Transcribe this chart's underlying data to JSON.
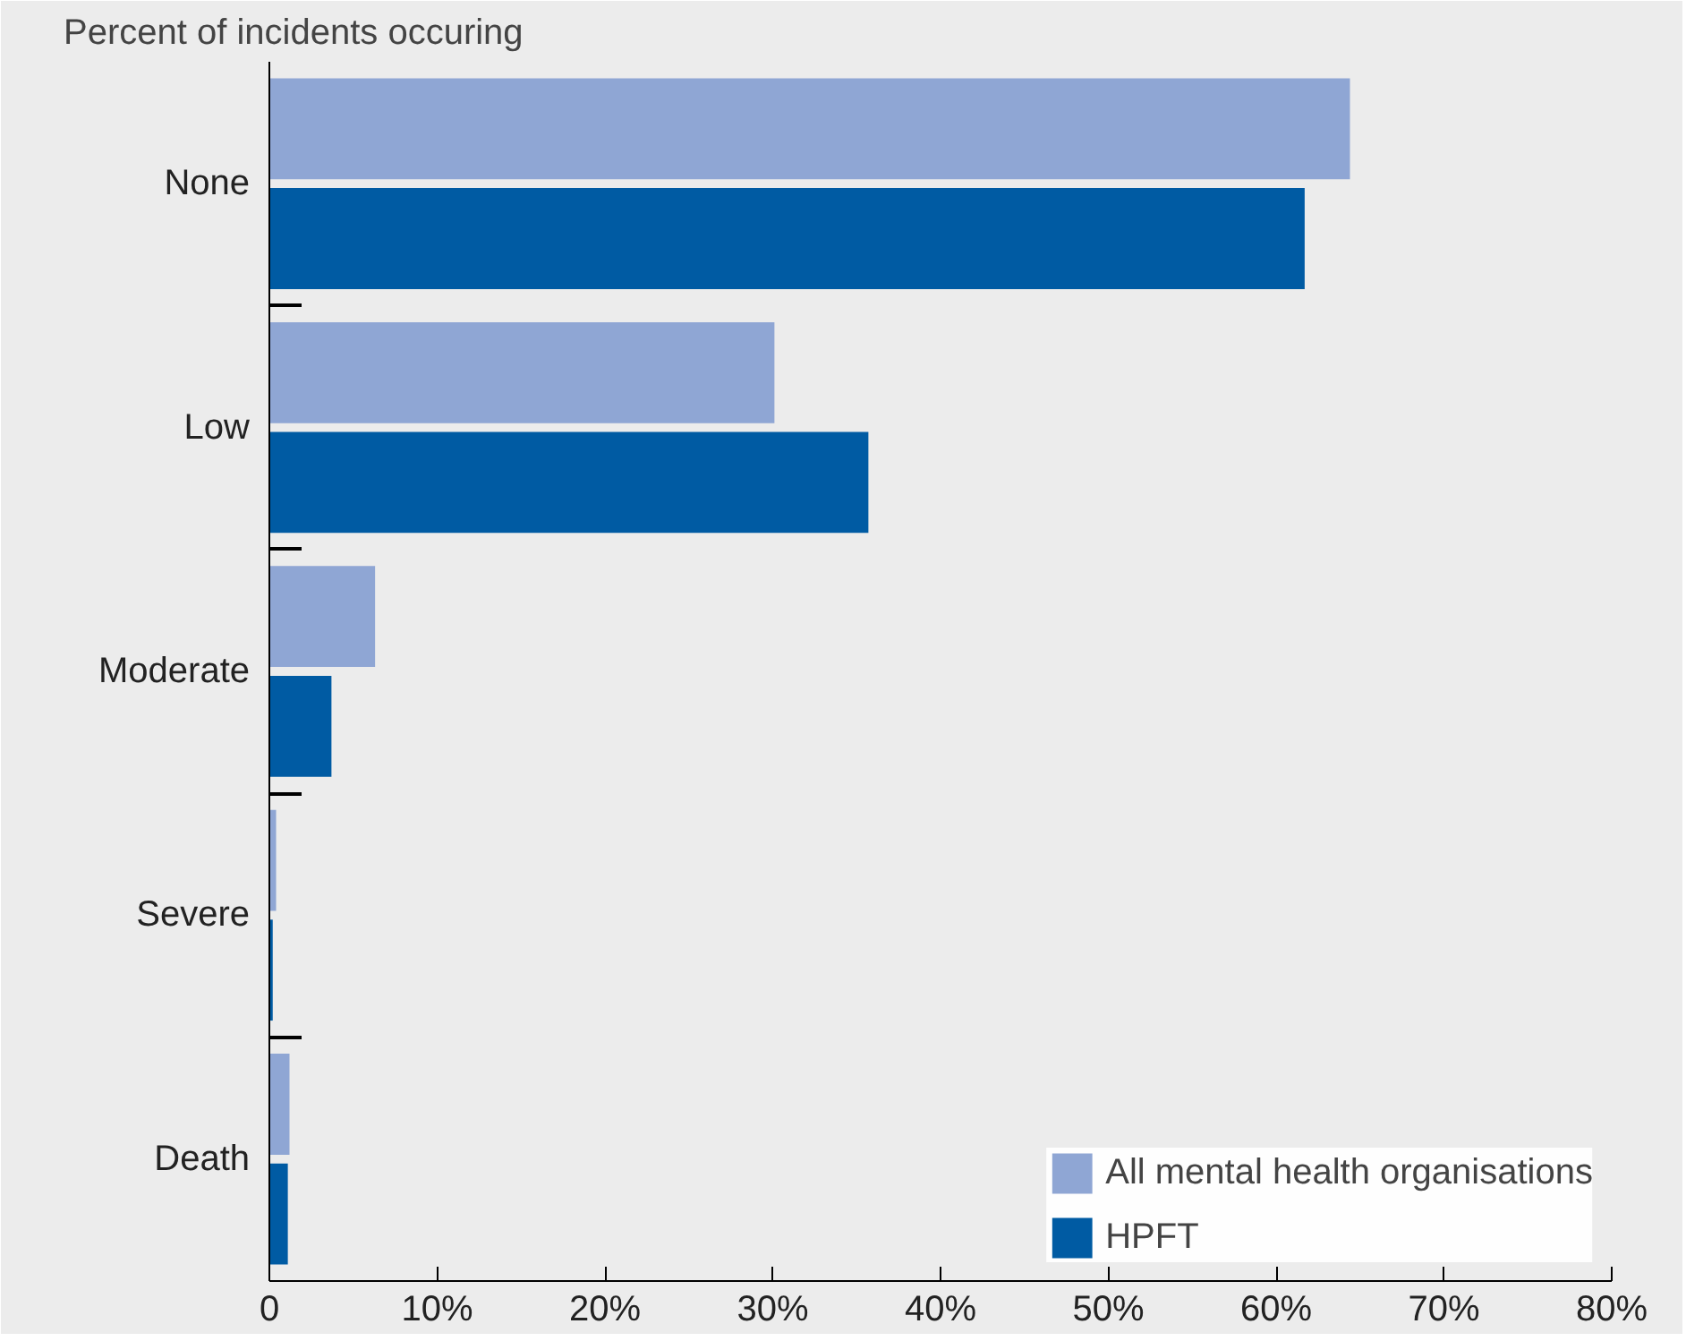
{
  "chart_data": {
    "type": "bar",
    "orientation": "horizontal",
    "title": "Percent of incidents occuring",
    "categories": [
      "None",
      "Low",
      "Moderate",
      "Severe",
      "Death"
    ],
    "series": [
      {
        "name": "All mental health organisations",
        "color": "#8fa6d4",
        "values": [
          64.4,
          30.1,
          6.3,
          0.4,
          1.2
        ]
      },
      {
        "name": "HPFT",
        "color": "#005ba3",
        "values": [
          61.7,
          35.7,
          3.7,
          0.2,
          1.1
        ]
      }
    ],
    "xlim": [
      0,
      80
    ],
    "xticks": [
      {
        "value": 0,
        "label": "0"
      },
      {
        "value": 10,
        "label": "10%"
      },
      {
        "value": 20,
        "label": "20%"
      },
      {
        "value": 30,
        "label": "30%"
      },
      {
        "value": 40,
        "label": "40%"
      },
      {
        "value": 50,
        "label": "50%"
      },
      {
        "value": 60,
        "label": "60%"
      },
      {
        "value": 70,
        "label": "70%"
      },
      {
        "value": 80,
        "label": "80%"
      }
    ],
    "grid": false,
    "legend": "bottom right"
  }
}
